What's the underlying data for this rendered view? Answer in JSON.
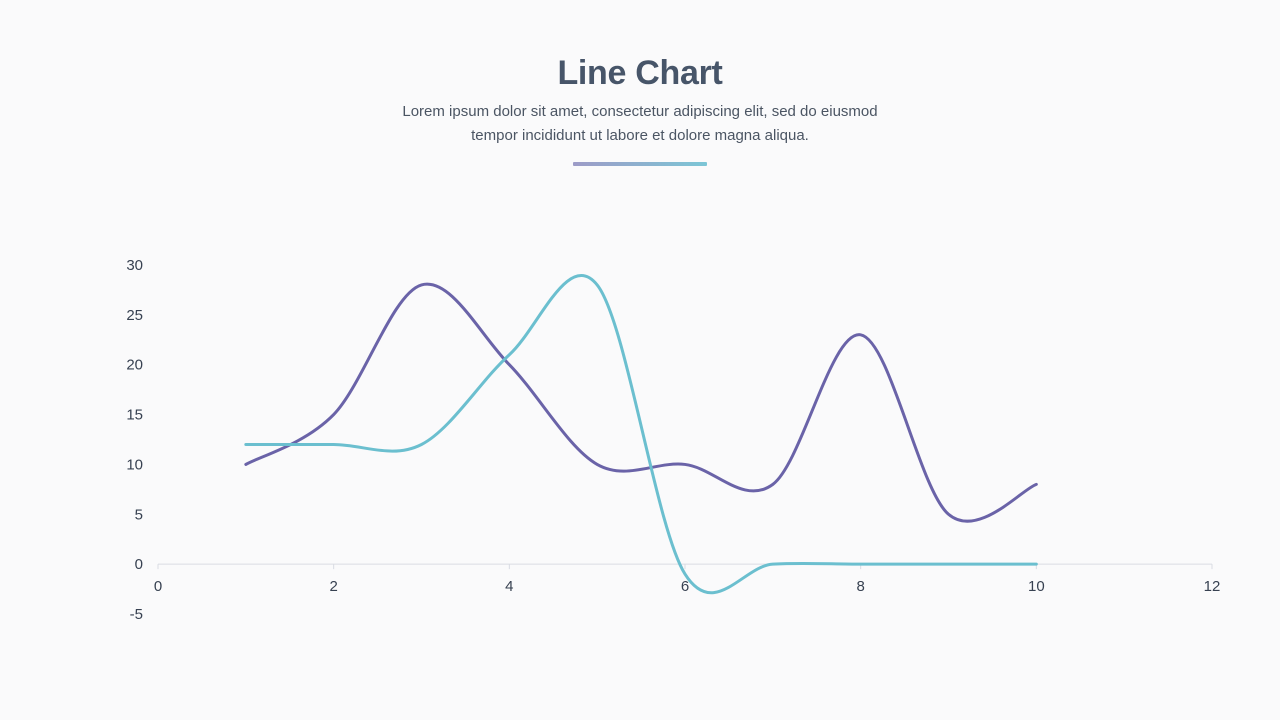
{
  "header": {
    "title": "Line Chart",
    "subtitle_line1": "Lorem ipsum dolor sit amet, consectetur adipiscing elit, sed do eiusmod",
    "subtitle_line2": "tempor incididunt ut labore et dolore magna aliqua."
  },
  "colors": {
    "accent_start": "#9d9bc7",
    "accent_end": "#7cc6d6",
    "series_1": "#6a63a8",
    "series_2": "#6bbfcf",
    "axis": "#d9dce3",
    "title": "#475569",
    "text": "#4b5563"
  },
  "chart_data": {
    "type": "line",
    "smooth": true,
    "title": "",
    "xlabel": "",
    "ylabel": "",
    "xlim": [
      0,
      12
    ],
    "ylim": [
      -5,
      30
    ],
    "x_ticks": [
      0,
      2,
      4,
      6,
      8,
      10,
      12
    ],
    "y_ticks": [
      30,
      25,
      20,
      15,
      10,
      5,
      0,
      -5
    ],
    "grid": false,
    "legend": "none",
    "series": [
      {
        "color": "#6a63a8",
        "points": [
          [
            1,
            10
          ],
          [
            2,
            15
          ],
          [
            3,
            28
          ],
          [
            4,
            20
          ],
          [
            5,
            10
          ],
          [
            6,
            10
          ],
          [
            7,
            8
          ],
          [
            8,
            23
          ],
          [
            9,
            5
          ],
          [
            10,
            8
          ]
        ]
      },
      {
        "color": "#6bbfcf",
        "points": [
          [
            1,
            12
          ],
          [
            2,
            12
          ],
          [
            3,
            12
          ],
          [
            4,
            21
          ],
          [
            5,
            28
          ],
          [
            6,
            -1
          ],
          [
            7,
            0
          ],
          [
            8,
            0
          ],
          [
            9,
            0
          ],
          [
            10,
            0
          ]
        ]
      }
    ]
  }
}
